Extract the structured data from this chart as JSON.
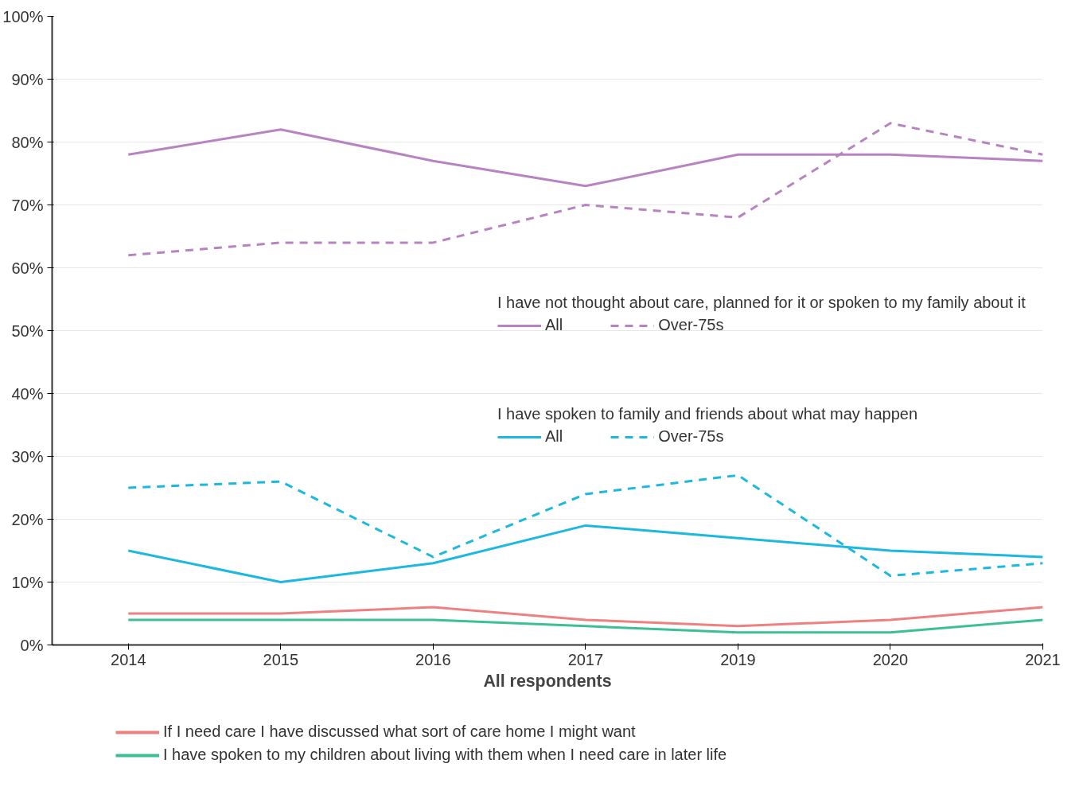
{
  "chart_data": {
    "type": "line",
    "xlabel": "All respondents",
    "categories": [
      "2014",
      "2015",
      "2016",
      "2017",
      "2019",
      "2020",
      "2021"
    ],
    "series": [
      {
        "name": "All",
        "color": "#b784c1",
        "line_style": "solid",
        "values": [
          78,
          82,
          77,
          73,
          78,
          78,
          77
        ]
      },
      {
        "name": "Over-75s",
        "color": "#b784c1",
        "line_style": "dashed",
        "values": [
          62,
          64,
          64,
          70,
          68,
          83,
          78
        ]
      },
      {
        "name": "All",
        "color": "#1cb8e0",
        "line_style": "solid",
        "values": [
          15,
          10,
          13,
          19,
          17,
          15,
          14
        ]
      },
      {
        "name": "Over-75s",
        "color": "#1cb8e0",
        "line_style": "dashed",
        "values": [
          25,
          26,
          14,
          24,
          27,
          11,
          13
        ]
      },
      {
        "name": "If I need care I have discussed what sort of care home I might want",
        "color": "#ee8080",
        "line_style": "solid",
        "values": [
          5,
          5,
          6,
          4,
          3,
          4,
          6
        ]
      },
      {
        "name": "I have spoken to my children about living with them when I need care in later life",
        "color": "#3dbf94",
        "line_style": "solid",
        "values": [
          4,
          4,
          4,
          3,
          2,
          2,
          4
        ]
      }
    ],
    "annotations": [
      "I have not thought about care, planned for it or spoken to my family about it",
      "I have spoken to family and friends about what may happen"
    ],
    "ylim": [
      0,
      100
    ],
    "yticks": [
      {
        "value": 0,
        "label": "0%"
      },
      {
        "value": 10,
        "label": "10%"
      },
      {
        "value": 20,
        "label": "20%"
      },
      {
        "value": 30,
        "label": "30%"
      },
      {
        "value": 40,
        "label": "40%"
      },
      {
        "value": 50,
        "label": "50%"
      },
      {
        "value": 60,
        "label": "60%"
      },
      {
        "value": 70,
        "label": "70%"
      },
      {
        "value": 80,
        "label": "80%"
      },
      {
        "value": 90,
        "label": "90%"
      },
      {
        "value": 100,
        "label": "100%"
      }
    ],
    "grid": "y",
    "legend": "bottom",
    "marker": "none"
  }
}
